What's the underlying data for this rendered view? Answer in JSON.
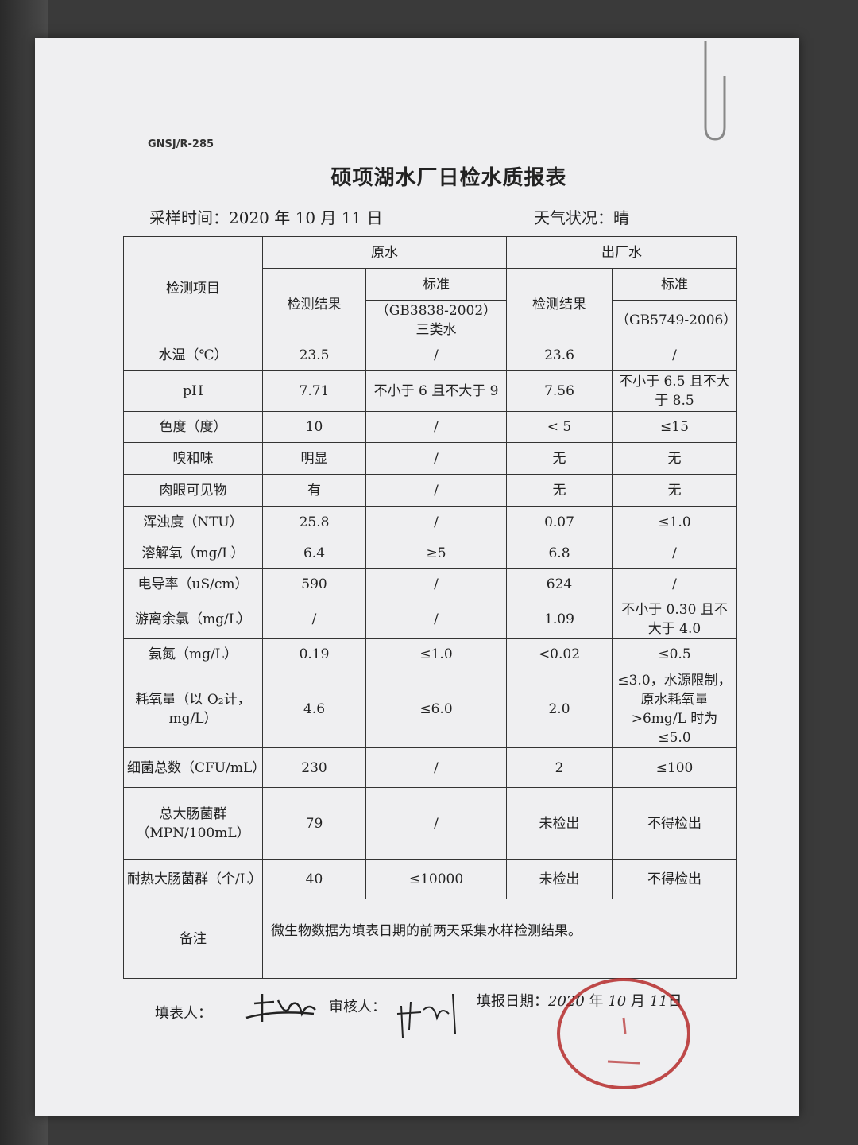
{
  "document": {
    "code": "GNSJ/R-285",
    "title": "硕项湖水厂日检水质报表",
    "sample_time_label": "采样时间：",
    "sample_time_value": "2020 年 10 月  11 日",
    "weather_label": "天气状况：",
    "weather_value": "晴"
  },
  "table": {
    "header": {
      "item": "检测项目",
      "raw_water": "原水",
      "finished_water": "出厂水",
      "result": "检测结果",
      "standard": "标准",
      "raw_standard_ref": "（GB3838-2002）",
      "raw_standard_class": "三类水",
      "finished_standard_ref": "（GB5749-2006）"
    },
    "rows": [
      {
        "item": "水温（℃）",
        "raw_result": "23.5",
        "raw_std": "/",
        "out_result": "23.6",
        "out_std": "/"
      },
      {
        "item": "pH",
        "raw_result": "7.71",
        "raw_std": "不小于 6 且不大于 9",
        "out_result": "7.56",
        "out_std": "不小于 6.5 且不大于 8.5"
      },
      {
        "item": "色度（度）",
        "raw_result": "10",
        "raw_std": "/",
        "out_result": "< 5",
        "out_std": "≤15"
      },
      {
        "item": "嗅和味",
        "raw_result": "明显",
        "raw_std": "/",
        "out_result": "无",
        "out_std": "无"
      },
      {
        "item": "肉眼可见物",
        "raw_result": "有",
        "raw_std": "/",
        "out_result": "无",
        "out_std": "无"
      },
      {
        "item": "浑浊度（NTU）",
        "raw_result": "25.8",
        "raw_std": "/",
        "out_result": "0.07",
        "out_std": "≤1.0"
      },
      {
        "item": "溶解氧（mg/L）",
        "raw_result": "6.4",
        "raw_std": "≥5",
        "out_result": "6.8",
        "out_std": "/"
      },
      {
        "item": "电导率（uS/cm）",
        "raw_result": "590",
        "raw_std": "/",
        "out_result": "624",
        "out_std": "/"
      },
      {
        "item": "游离余氯（mg/L）",
        "raw_result": "/",
        "raw_std": "/",
        "out_result": "1.09",
        "out_std": "不小于 0.30 且不大于 4.0"
      },
      {
        "item": "氨氮（mg/L）",
        "raw_result": "0.19",
        "raw_std": "≤1.0",
        "out_result": "<0.02",
        "out_std": "≤0.5"
      },
      {
        "item": "耗氧量（以 O₂计，mg/L）",
        "raw_result": "4.6",
        "raw_std": "≤6.0",
        "out_result": "2.0",
        "out_std": "≤3.0，水源限制，原水耗氧量>6mg/L 时为≤5.0"
      },
      {
        "item": "细菌总数（CFU/mL）",
        "raw_result": "230",
        "raw_std": "/",
        "out_result": "2",
        "out_std": "≤100"
      },
      {
        "item": "总大肠菌群（MPN/100mL）",
        "raw_result": "79",
        "raw_std": "/",
        "out_result": "未检出",
        "out_std": "不得检出"
      },
      {
        "item": "耐热大肠菌群（个/L）",
        "raw_result": "40",
        "raw_std": "≤10000",
        "out_result": "未检出",
        "out_std": "不得检出"
      }
    ],
    "remark_label": "备注",
    "remark_text": "微生物数据为填表日期的前两天采集水样检测结果。"
  },
  "footer": {
    "filler_label": "填表人：",
    "reviewer_label": "审核人：",
    "date_label": "填报日期：",
    "date_year": "2020",
    "date_year_unit": "年",
    "date_month": "10",
    "date_month_unit": "月",
    "date_day": "11",
    "date_day_unit": "日"
  },
  "colors": {
    "ink": "#222222",
    "stamp": "#b52a2a",
    "paper": "#efeff1"
  }
}
